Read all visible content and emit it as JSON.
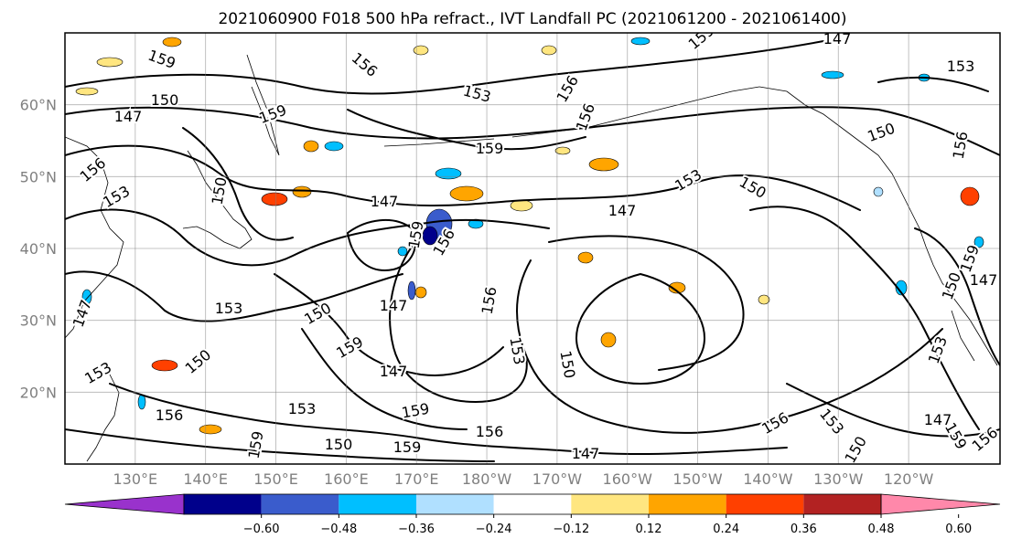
{
  "title": "2021060900 F018 500 hPa refract., IVT Landfall PC (2021061200 - 2021061400)",
  "map": {
    "lat_ticks": [
      {
        "lat": 60,
        "label": "60°N"
      },
      {
        "lat": 50,
        "label": "50°N"
      },
      {
        "lat": 40,
        "label": "40°N"
      },
      {
        "lat": 30,
        "label": "30°N"
      },
      {
        "lat": 20,
        "label": "20°N"
      }
    ],
    "lon_ticks": [
      {
        "lon": 130,
        "label": "130°E"
      },
      {
        "lon": 140,
        "label": "140°E"
      },
      {
        "lon": 150,
        "label": "150°E"
      },
      {
        "lon": 160,
        "label": "160°E"
      },
      {
        "lon": 170,
        "label": "170°E"
      },
      {
        "lon": 180,
        "label": "180°W"
      },
      {
        "lon": 190,
        "label": "170°W"
      },
      {
        "lon": 200,
        "label": "160°W"
      },
      {
        "lon": 210,
        "label": "150°W"
      },
      {
        "lon": 220,
        "label": "140°W"
      },
      {
        "lon": 230,
        "label": "130°W"
      },
      {
        "lon": 240,
        "label": "120°W"
      }
    ],
    "contour_labels": [
      "159",
      "156",
      "153",
      "150",
      "147",
      "159",
      "156",
      "153",
      "150",
      "147",
      "159",
      "156",
      "153",
      "150",
      "147",
      "159",
      "156",
      "153",
      "150",
      "147",
      "159",
      "156",
      "153",
      "150",
      "147",
      "159",
      "156",
      "153",
      "150",
      "147"
    ]
  },
  "colorbar": {
    "colors": [
      "#9932cc",
      "#00008b",
      "#3a5ccc",
      "#00bfff",
      "#b0e0ff",
      "#ffffff",
      "#ffe680",
      "#ffa500",
      "#ff4000",
      "#b22222",
      "#ff88aa"
    ],
    "tick_labels": [
      "−0.60",
      "−0.48",
      "−0.36",
      "−0.24",
      "−0.12",
      "0.12",
      "0.24",
      "0.36",
      "0.48",
      "0.60"
    ]
  }
}
